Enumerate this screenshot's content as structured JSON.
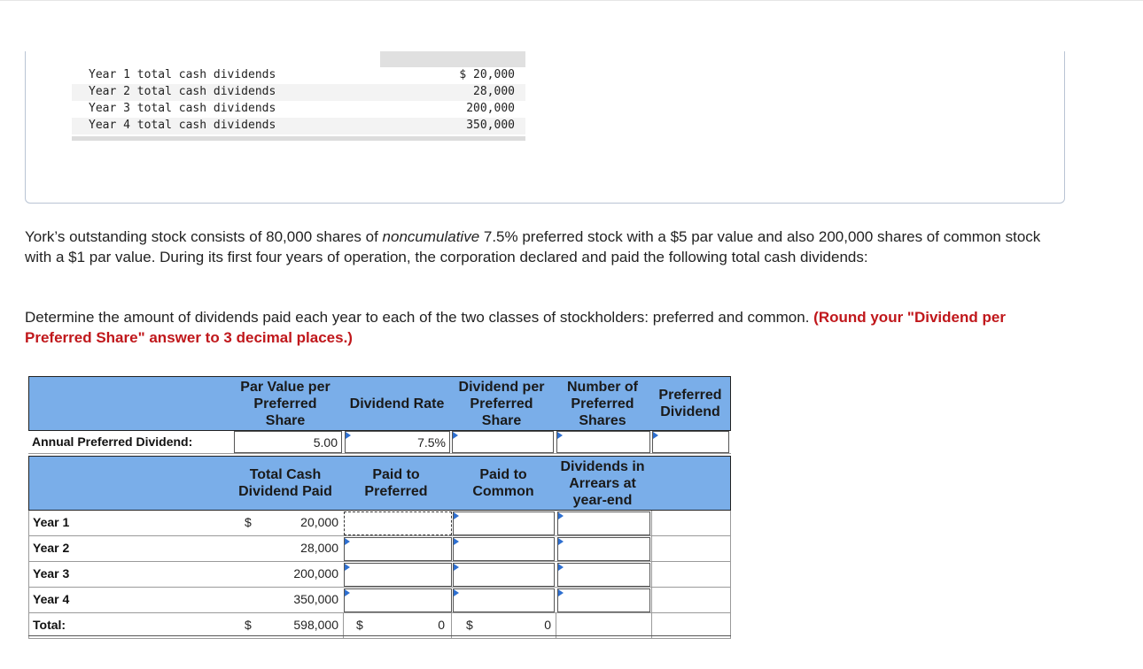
{
  "dataset": {
    "rows": [
      {
        "label": "Year 1 total cash dividends",
        "value": "$ 20,000"
      },
      {
        "label": "Year 2 total cash dividends",
        "value": "28,000"
      },
      {
        "label": "Year 3 total cash dividends",
        "value": "200,000"
      },
      {
        "label": "Year 4 total cash dividends",
        "value": "350,000"
      }
    ]
  },
  "problem": {
    "p1_a": "York’s outstanding stock consists of 80,000 shares of ",
    "p1_em": "noncumulative",
    "p1_b": " 7.5% preferred stock with a $5 par value and also 200,000 shares of common stock with a $1 par value. During its first four years of operation, the corporation declared and paid the following total cash dividends:",
    "p2_a": "Determine the amount of dividends paid each year to each of the two classes of stockholders: preferred and common. ",
    "p2_red": "(Round your \"Dividend per Preferred Share\" answer to 3 decimal places.)"
  },
  "annual": {
    "headers": {
      "par": "Par Value per Preferred Share",
      "rate": "Dividend Rate",
      "per_share": "Dividend per Preferred Share",
      "num_shares": "Number of Preferred Shares",
      "pref_div": "Preferred Dividend"
    },
    "row_label": "Annual Preferred Dividend:",
    "par_dollar": "$",
    "par_value": "5.00",
    "rate_value": "7.5%",
    "per_share_value": "",
    "num_shares_value": "",
    "pref_div_value": ""
  },
  "yearly": {
    "headers": {
      "total": "Total Cash Dividend Paid",
      "pref": "Paid to Preferred",
      "common": "Paid to Common",
      "arrears": "Dividends in Arrears at year-end"
    },
    "rows": [
      {
        "label": "Year 1",
        "total": "20,000"
      },
      {
        "label": "Year 2",
        "total": "28,000"
      },
      {
        "label": "Year 3",
        "total": "200,000"
      },
      {
        "label": "Year 4",
        "total": "350,000"
      }
    ],
    "first_dollar": "$",
    "total_row": {
      "label": "Total:",
      "dollar1": "$",
      "total": "598,000",
      "dollar2": "$",
      "pref": "0",
      "dollar3": "$",
      "common": "0"
    }
  },
  "colors": {
    "header_bg": "#7aaee9",
    "accent_red": "#c0171b",
    "input_arrow": "#2e6fd0"
  }
}
